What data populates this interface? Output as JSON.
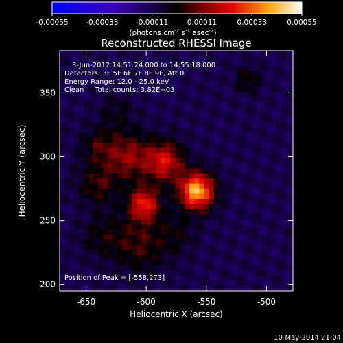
{
  "colorbar": {
    "tick_labels": [
      "-0.00055",
      "-0.00033",
      "-0.00011",
      "0.00011",
      "0.00033",
      "0.00055"
    ],
    "tick_values": [
      -0.00055,
      -0.00033,
      -0.00011,
      0.00011,
      0.00033,
      0.00055
    ],
    "range": [
      -0.00055,
      0.00055
    ],
    "unit_prefix": "(photons cm",
    "unit_exp1": "-2",
    "unit_mid1": " s",
    "unit_exp2": "-1",
    "unit_mid2": " asec",
    "unit_exp3": "-2",
    "unit_suffix": ")"
  },
  "chart_data": {
    "type": "heatmap",
    "title": "Reconstructed RHESSI Image",
    "xlabel": "Heliocentric X (arcsec)",
    "ylabel": "Heliocentric Y (arcsec)",
    "xlim": [
      -672,
      -478
    ],
    "ylim": [
      195,
      383
    ],
    "x_ticks": [
      -650,
      -600,
      -550,
      -500
    ],
    "y_ticks": [
      200,
      250,
      300,
      350
    ],
    "x_tick_labels": [
      "-650",
      "-600",
      "-550",
      "-500"
    ],
    "y_tick_labels": [
      "200",
      "250",
      "300",
      "350"
    ],
    "annotations": [
      "3-Jun-2012 14:51:24.000 to 14:55:18.000",
      "Detectors: 3F 5F 6F 7F 8F 9F, Att 0",
      "Energy Range: 12.0 - 25.0 keV",
      "Clean     Total counts: 3.82E+03"
    ],
    "peak_label": "Position of Peak = [-558,273]",
    "peak": [
      -558,
      273
    ],
    "sources": [
      {
        "x": -558,
        "y": 273,
        "sigma": 10,
        "amp": 0.00055
      },
      {
        "x": -602,
        "y": 263,
        "sigma": 9,
        "amp": 0.00036
      },
      {
        "x": -585,
        "y": 296,
        "sigma": 11,
        "amp": 0.00033
      },
      {
        "x": -615,
        "y": 300,
        "sigma": 13,
        "amp": 0.00024
      },
      {
        "x": -640,
        "y": 278,
        "sigma": 11,
        "amp": 0.00016
      },
      {
        "x": -640,
        "y": 308,
        "sigma": 10,
        "amp": 0.00014
      },
      {
        "x": -605,
        "y": 232,
        "sigma": 16,
        "amp": 0.00016
      },
      {
        "x": -637,
        "y": 238,
        "sigma": 12,
        "amp": 0.0001
      },
      {
        "x": -574,
        "y": 240,
        "sigma": 10,
        "amp": 9e-05
      },
      {
        "x": -515,
        "y": 360,
        "sigma": 7,
        "amp": 0.00013
      },
      {
        "x": -625,
        "y": 335,
        "sigma": 10,
        "amp": 8e-05
      }
    ],
    "background": -0.00011,
    "ripple_amp": 5e-05
  },
  "footer": {
    "timestamp": "10-May-2014 21:04"
  }
}
